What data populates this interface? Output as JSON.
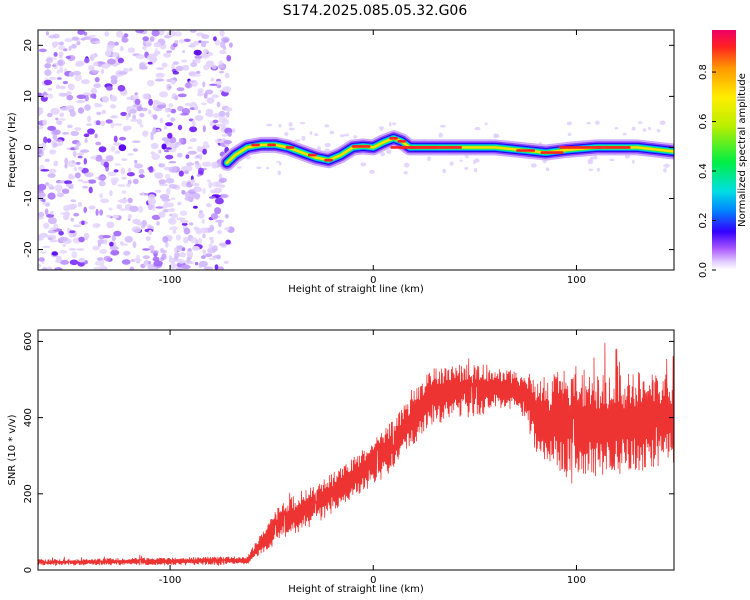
{
  "title": "S174.2025.085.05.32.G06",
  "chart_data": [
    {
      "type": "heatmap",
      "xlabel": "Height of straight line (km)",
      "ylabel": "Frequency (Hz)",
      "xlim": [
        -165,
        148
      ],
      "ylim": [
        -24,
        23
      ],
      "xticks": [
        -100,
        0,
        100
      ],
      "xtick_labels": [
        "-100",
        "0",
        "100"
      ],
      "yticks": [
        -20,
        -10,
        0,
        10,
        20
      ],
      "ytick_labels": [
        "-20",
        "-10",
        "0",
        "10",
        "20"
      ],
      "noise_region_x": [
        -165,
        -70
      ],
      "ridge": {
        "x": [
          -72,
          -68,
          -62,
          -55,
          -48,
          -42,
          -35,
          -28,
          -22,
          -16,
          -10,
          -5,
          0,
          5,
          10,
          14,
          18,
          25,
          40,
          60,
          75,
          85,
          95,
          110,
          130,
          148
        ],
        "freq": [
          -3,
          -1.5,
          0,
          0.5,
          0.5,
          0,
          -1,
          -2,
          -2.5,
          -1.5,
          0,
          0.2,
          0,
          1,
          1.8,
          1.2,
          0,
          0,
          0,
          0,
          -0.6,
          -1,
          -0.5,
          0,
          0,
          -0.8
        ]
      },
      "colorbar": {
        "label": "Normalized spectral amplitude",
        "ticks": [
          0.0,
          0.2,
          0.4,
          0.6,
          0.8
        ],
        "tick_labels": [
          "0.0",
          "0.2",
          "0.4",
          "0.6",
          "0.8"
        ],
        "range": [
          0,
          0.97
        ]
      }
    },
    {
      "type": "line",
      "xlabel": "Height of straight line (km)",
      "ylabel": "SNR (10 * v/v)",
      "xlim": [
        -165,
        148
      ],
      "ylim": [
        0,
        630
      ],
      "xticks": [
        -100,
        0,
        100
      ],
      "xtick_labels": [
        "-100",
        "0",
        "100"
      ],
      "yticks": [
        0,
        200,
        400,
        600
      ],
      "ytick_labels": [
        "0",
        "200",
        "400",
        "600"
      ],
      "color": "#ee3333",
      "series": [
        {
          "name": "SNR",
          "envelope_x": [
            -165,
            -62,
            -55,
            -45,
            -30,
            -15,
            0,
            10,
            20,
            30,
            40,
            50,
            60,
            70,
            75,
            80,
            90,
            100,
            110,
            120,
            130,
            140,
            148
          ],
          "envelope_mid": [
            20,
            25,
            70,
            130,
            170,
            220,
            280,
            330,
            400,
            460,
            470,
            470,
            480,
            470,
            460,
            410,
            390,
            390,
            380,
            380,
            390,
            390,
            400
          ],
          "envelope_amp": [
            8,
            12,
            30,
            50,
            55,
            55,
            60,
            65,
            70,
            80,
            70,
            70,
            60,
            50,
            70,
            100,
            130,
            140,
            140,
            130,
            130,
            130,
            120
          ]
        }
      ]
    }
  ]
}
